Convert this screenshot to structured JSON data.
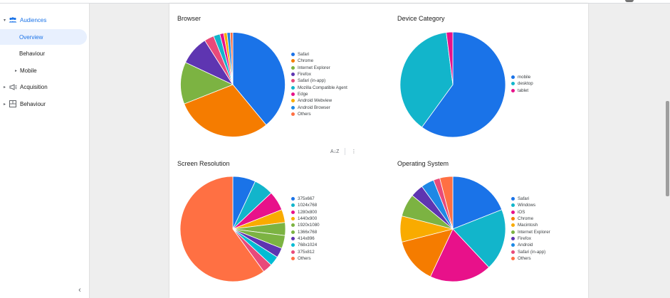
{
  "sidebar": {
    "items": [
      {
        "label": "Audiences",
        "icon": "audience-icon",
        "arrow": "▾"
      },
      {
        "label": "Overview"
      },
      {
        "label": "Behaviour"
      },
      {
        "label": "Mobile",
        "arrow": "▸"
      },
      {
        "label": "Acquisition",
        "icon": "megaphone-icon",
        "arrow": "▸"
      },
      {
        "label": "Behaviour",
        "icon": "grid-icon",
        "arrow": "▸"
      }
    ],
    "collapse_icon": "‹"
  },
  "toolbar": {
    "sort_icon": "A↓Z",
    "more_icon": "⋮"
  },
  "colors": {
    "blue": "#1a73e8",
    "orange": "#f57c00",
    "green": "#7cb342",
    "purple": "#5e35b1",
    "pink": "#e91e63",
    "teal": "#12b5cb",
    "magenta": "#e8118a",
    "amber": "#f9ab00",
    "lightblue": "#1e88e5",
    "rose": "#e84a7a",
    "coral": "#ff7043",
    "cyan": "#00bcd4"
  },
  "chart_data": [
    {
      "type": "pie",
      "title": "Browser",
      "series": [
        {
          "name": "Safari",
          "value": 39,
          "color": "#1a73e8"
        },
        {
          "name": "Chrome",
          "value": 30,
          "color": "#f57c00"
        },
        {
          "name": "Internet Explorer",
          "value": 13,
          "color": "#7cb342"
        },
        {
          "name": "Firefox",
          "value": 9,
          "color": "#5e35b1"
        },
        {
          "name": "Safari (in-app)",
          "value": 3,
          "color": "#e84a7a"
        },
        {
          "name": "Mozilla Compatible Agent",
          "value": 2,
          "color": "#12b5cb"
        },
        {
          "name": "Edge",
          "value": 1.2,
          "color": "#e8118a"
        },
        {
          "name": "Android Webview",
          "value": 1,
          "color": "#f9ab00"
        },
        {
          "name": "Android Browser",
          "value": 1,
          "color": "#1e88e5"
        },
        {
          "name": "Others",
          "value": 0.8,
          "color": "#ff7043"
        }
      ]
    },
    {
      "type": "pie",
      "title": "Device Category",
      "series": [
        {
          "name": "mobile",
          "value": 60,
          "color": "#1a73e8"
        },
        {
          "name": "desktop",
          "value": 38,
          "color": "#12b5cb"
        },
        {
          "name": "tablet",
          "value": 2,
          "color": "#e8118a"
        }
      ]
    },
    {
      "type": "pie",
      "title": "Screen Resolution",
      "series": [
        {
          "name": "375x667",
          "value": 7,
          "color": "#1a73e8"
        },
        {
          "name": "1024x768",
          "value": 6,
          "color": "#12b5cb"
        },
        {
          "name": "1280x800",
          "value": 6,
          "color": "#e8118a"
        },
        {
          "name": "1440x900",
          "value": 4,
          "color": "#f9ab00"
        },
        {
          "name": "1920x1080",
          "value": 4,
          "color": "#7cb342"
        },
        {
          "name": "1366x768",
          "value": 4,
          "color": "#7cb342"
        },
        {
          "name": "414x896",
          "value": 3,
          "color": "#5e35b1"
        },
        {
          "name": "768x1024",
          "value": 3,
          "color": "#00bcd4"
        },
        {
          "name": "375x812",
          "value": 3,
          "color": "#e84a7a"
        },
        {
          "name": "Others",
          "value": 60,
          "color": "#ff7043"
        }
      ]
    },
    {
      "type": "pie",
      "title": "Operating System",
      "series": [
        {
          "name": "Safari",
          "value": 19,
          "color": "#1a73e8"
        },
        {
          "name": "Windows",
          "value": 19,
          "color": "#12b5cb"
        },
        {
          "name": "iOS",
          "value": 19,
          "color": "#e8118a"
        },
        {
          "name": "Chrome",
          "value": 14,
          "color": "#f57c00"
        },
        {
          "name": "Macintosh",
          "value": 8,
          "color": "#f9ab00"
        },
        {
          "name": "Internet Explorer",
          "value": 7,
          "color": "#7cb342"
        },
        {
          "name": "Firefox",
          "value": 4,
          "color": "#5e35b1"
        },
        {
          "name": "Android",
          "value": 4,
          "color": "#1e88e5"
        },
        {
          "name": "Safari (in-app)",
          "value": 2,
          "color": "#e84a7a"
        },
        {
          "name": "Others",
          "value": 4,
          "color": "#ff7043"
        }
      ]
    }
  ]
}
